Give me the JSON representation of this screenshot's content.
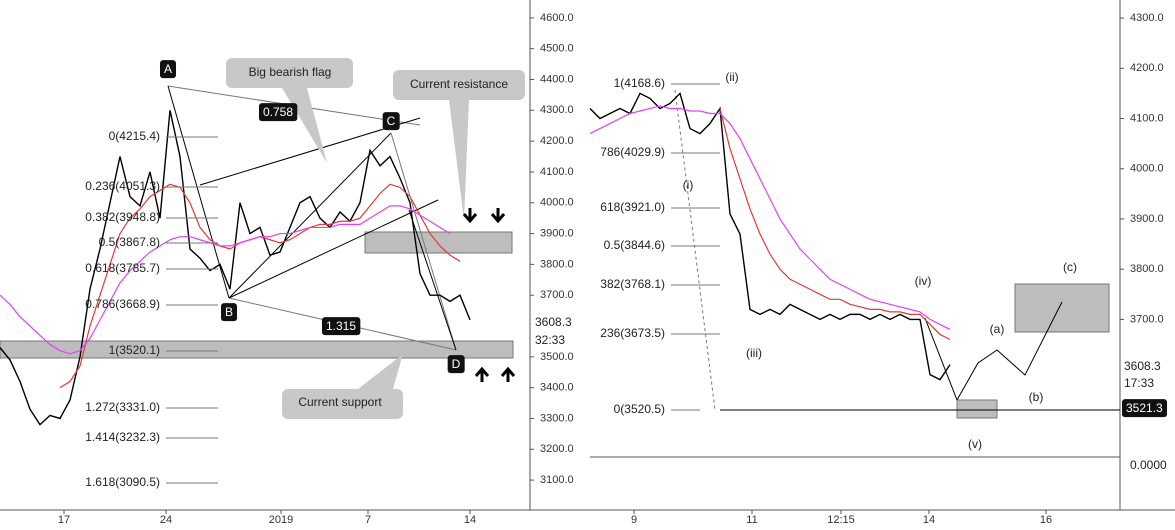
{
  "chart_data": [
    {
      "type": "line",
      "xlim": [
        0,
        53
      ],
      "xticks": [
        {
          "value": 6.4,
          "label": "17"
        },
        {
          "value": 16.6,
          "label": "24"
        },
        {
          "value": 28.1,
          "label": "2019"
        },
        {
          "value": 36.8,
          "label": "7"
        },
        {
          "value": 47,
          "label": "14"
        }
      ],
      "ylim": [
        3003,
        4658
      ],
      "yticks": [
        {
          "value": 4600,
          "label": "4600.0"
        },
        {
          "value": 4500,
          "label": "4500.0"
        },
        {
          "value": 4400,
          "label": "4400.0"
        },
        {
          "value": 4300,
          "label": "4300.0"
        },
        {
          "value": 4200,
          "label": "4200.0"
        },
        {
          "value": 4100,
          "label": "4100.0"
        },
        {
          "value": 4000,
          "label": "4000.0"
        },
        {
          "value": 3900,
          "label": "3900.0"
        },
        {
          "value": 3800,
          "label": "3800.0"
        },
        {
          "value": 3700,
          "label": "3700.0"
        },
        {
          "value": 3500,
          "label": "3500.0"
        },
        {
          "value": 3400,
          "label": "3400.0"
        },
        {
          "value": 3300,
          "label": "3300.0"
        },
        {
          "value": 3200,
          "label": "3200.0"
        },
        {
          "value": 3100,
          "label": "3100.0"
        }
      ],
      "series": [
        {
          "color": "#000000",
          "values": [
            3530,
            3490,
            3420,
            3330,
            3280,
            3310,
            3300,
            3360,
            3500,
            3720,
            3850,
            4000,
            4150,
            4020,
            3990,
            4100,
            3950,
            4300,
            4150,
            3850,
            3820,
            3780,
            3800,
            3720,
            4000,
            3900,
            3920,
            3830,
            3840,
            3920,
            4000,
            4020,
            3950,
            3920,
            3970,
            3940,
            4000,
            4170,
            4120,
            4150,
            4080,
            4000,
            3770,
            3700,
            3700,
            3680,
            3700,
            3620
          ]
        },
        {
          "color": "#e53935",
          "values": [
            null,
            null,
            null,
            null,
            null,
            null,
            3400,
            3420,
            3470,
            3600,
            3700,
            3800,
            3900,
            3950,
            3980,
            4020,
            4040,
            4060,
            4050,
            4000,
            3920,
            3880,
            3860,
            3850,
            3870,
            3880,
            3890,
            3880,
            3870,
            3880,
            3900,
            3920,
            3930,
            3930,
            3940,
            3940,
            3950,
            3990,
            4030,
            4060,
            4050,
            4020,
            3960,
            3900,
            3860,
            3830,
            3810,
            null
          ]
        },
        {
          "color": "#e040fb",
          "values": [
            3700,
            3670,
            3630,
            3600,
            3570,
            3540,
            3520,
            3510,
            3520,
            3560,
            3620,
            3680,
            3740,
            3780,
            3810,
            3840,
            3860,
            3880,
            3890,
            3890,
            3880,
            3870,
            3860,
            3860,
            3870,
            3880,
            3890,
            3890,
            3900,
            3900,
            3910,
            3920,
            3920,
            3920,
            3930,
            3930,
            3930,
            3950,
            3970,
            3990,
            3990,
            3980,
            3960,
            3940,
            3920,
            3900,
            null,
            null
          ]
        }
      ],
      "annotations": [
        "A",
        "B",
        "C",
        "D",
        "0.758",
        "1.315",
        "Big bearish flag",
        "Current resistance",
        "Current support",
        "0(4215.4)",
        "0.236(4051.3)",
        "0.382(3948.8)",
        "0.5(3867.8)",
        "0.618(3785.7)",
        "0.786(3668.9)",
        "1(3520.1)",
        "1.272(3331.0)",
        "1.414(3232.3)",
        "1.618(3090.5)",
        "3608.3",
        "32:33"
      ]
    },
    {
      "type": "line",
      "xlim": [
        0,
        53
      ],
      "xticks": [
        {
          "value": 4.4,
          "label": "9"
        },
        {
          "value": 16.2,
          "label": "11"
        },
        {
          "value": 25.1,
          "label": "12:15"
        },
        {
          "value": 33.9,
          "label": "14"
        },
        {
          "value": 45.6,
          "label": "16"
        }
      ],
      "ylim": [
        3430,
        4336
      ],
      "yticks": [
        {
          "value": 4300,
          "label": "4300.0"
        },
        {
          "value": 4200,
          "label": "4200.0"
        },
        {
          "value": 4100,
          "label": "4100.0"
        },
        {
          "value": 4000,
          "label": "4000.0"
        },
        {
          "value": 3900,
          "label": "3900.0"
        },
        {
          "value": 3800,
          "label": "3800.0"
        },
        {
          "value": 3700,
          "label": "3700.0"
        }
      ],
      "series": [
        {
          "color": "#000000",
          "values": [
            4120,
            4100,
            4110,
            4120,
            4110,
            4150,
            4140,
            4120,
            4130,
            4150,
            4080,
            4070,
            4090,
            4120,
            3910,
            3870,
            3720,
            3710,
            3720,
            3710,
            3730,
            3720,
            3710,
            3700,
            3710,
            3700,
            3710,
            3710,
            3700,
            3710,
            3700,
            3710,
            3700,
            3700,
            3590,
            3580,
            3610
          ]
        },
        {
          "color": "#e53935",
          "values": [
            null,
            null,
            null,
            null,
            null,
            null,
            null,
            null,
            null,
            null,
            null,
            null,
            null,
            4120,
            4040,
            3980,
            3920,
            3870,
            3830,
            3800,
            3780,
            3770,
            3760,
            3750,
            3740,
            3740,
            3730,
            3725,
            3720,
            3720,
            3715,
            3715,
            3710,
            3710,
            3690,
            3670,
            3660
          ]
        },
        {
          "color": "#e040fb",
          "values": [
            4070,
            4080,
            4090,
            4100,
            4110,
            4115,
            4120,
            4125,
            4120,
            4120,
            4115,
            4115,
            4110,
            4110,
            4090,
            4060,
            4020,
            3980,
            3940,
            3900,
            3870,
            3840,
            3820,
            3800,
            3780,
            3770,
            3760,
            3750,
            3740,
            3735,
            3730,
            3725,
            3720,
            3715,
            3700,
            3690,
            3680
          ]
        }
      ],
      "annotations": [
        "1(4168.6)",
        "786(4029.9)",
        "618(3921.0)",
        "0.5(3844.6)",
        "382(3768.1)",
        "236(3673.5)",
        "0(3520.5)",
        "(i)",
        "(ii)",
        "(iii)",
        "(iv)",
        "(v)",
        "(a)",
        "(b)",
        "(c)",
        "3608.3",
        "17:33",
        "3521.3",
        "0.0000"
      ]
    }
  ]
}
